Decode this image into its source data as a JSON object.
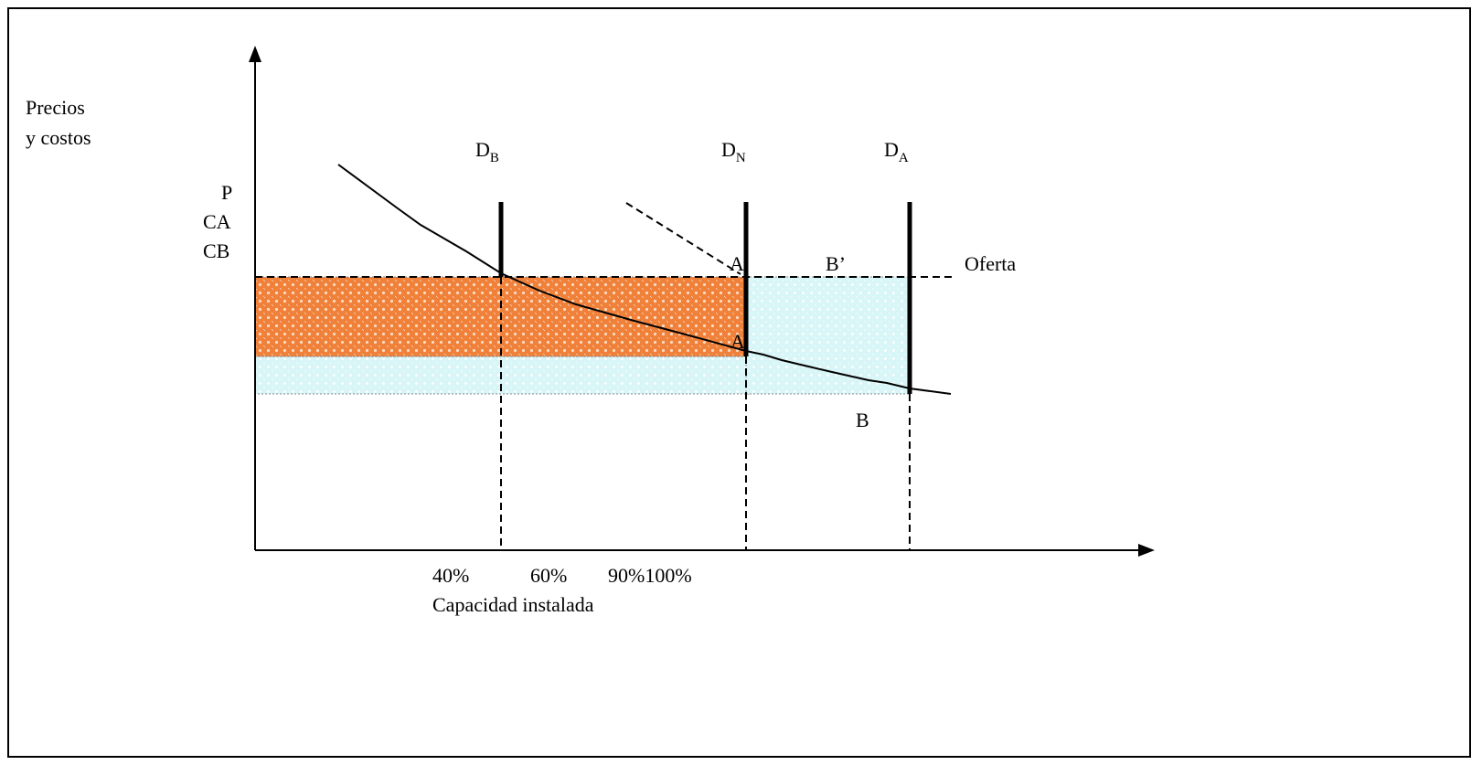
{
  "y_axis_label": {
    "line1": "Precios",
    "line2": "y costos"
  },
  "y_labels": [
    "P",
    "CA",
    "CB"
  ],
  "demand_lines": [
    {
      "base": "D",
      "sub": "B"
    },
    {
      "base": "D",
      "sub": "N"
    },
    {
      "base": "D",
      "sub": "A"
    }
  ],
  "points": {
    "a_prime": "A’",
    "b_prime": "B’",
    "a": "A",
    "b": "B"
  },
  "supply_label": "Oferta",
  "x_ticks": [
    "40%",
    "60%",
    "90%100%"
  ],
  "x_axis_label": "Capacidad instalada",
  "colors": {
    "orange": "#f0813a",
    "cyan": "#d8f5f7",
    "line": "#000000"
  }
}
